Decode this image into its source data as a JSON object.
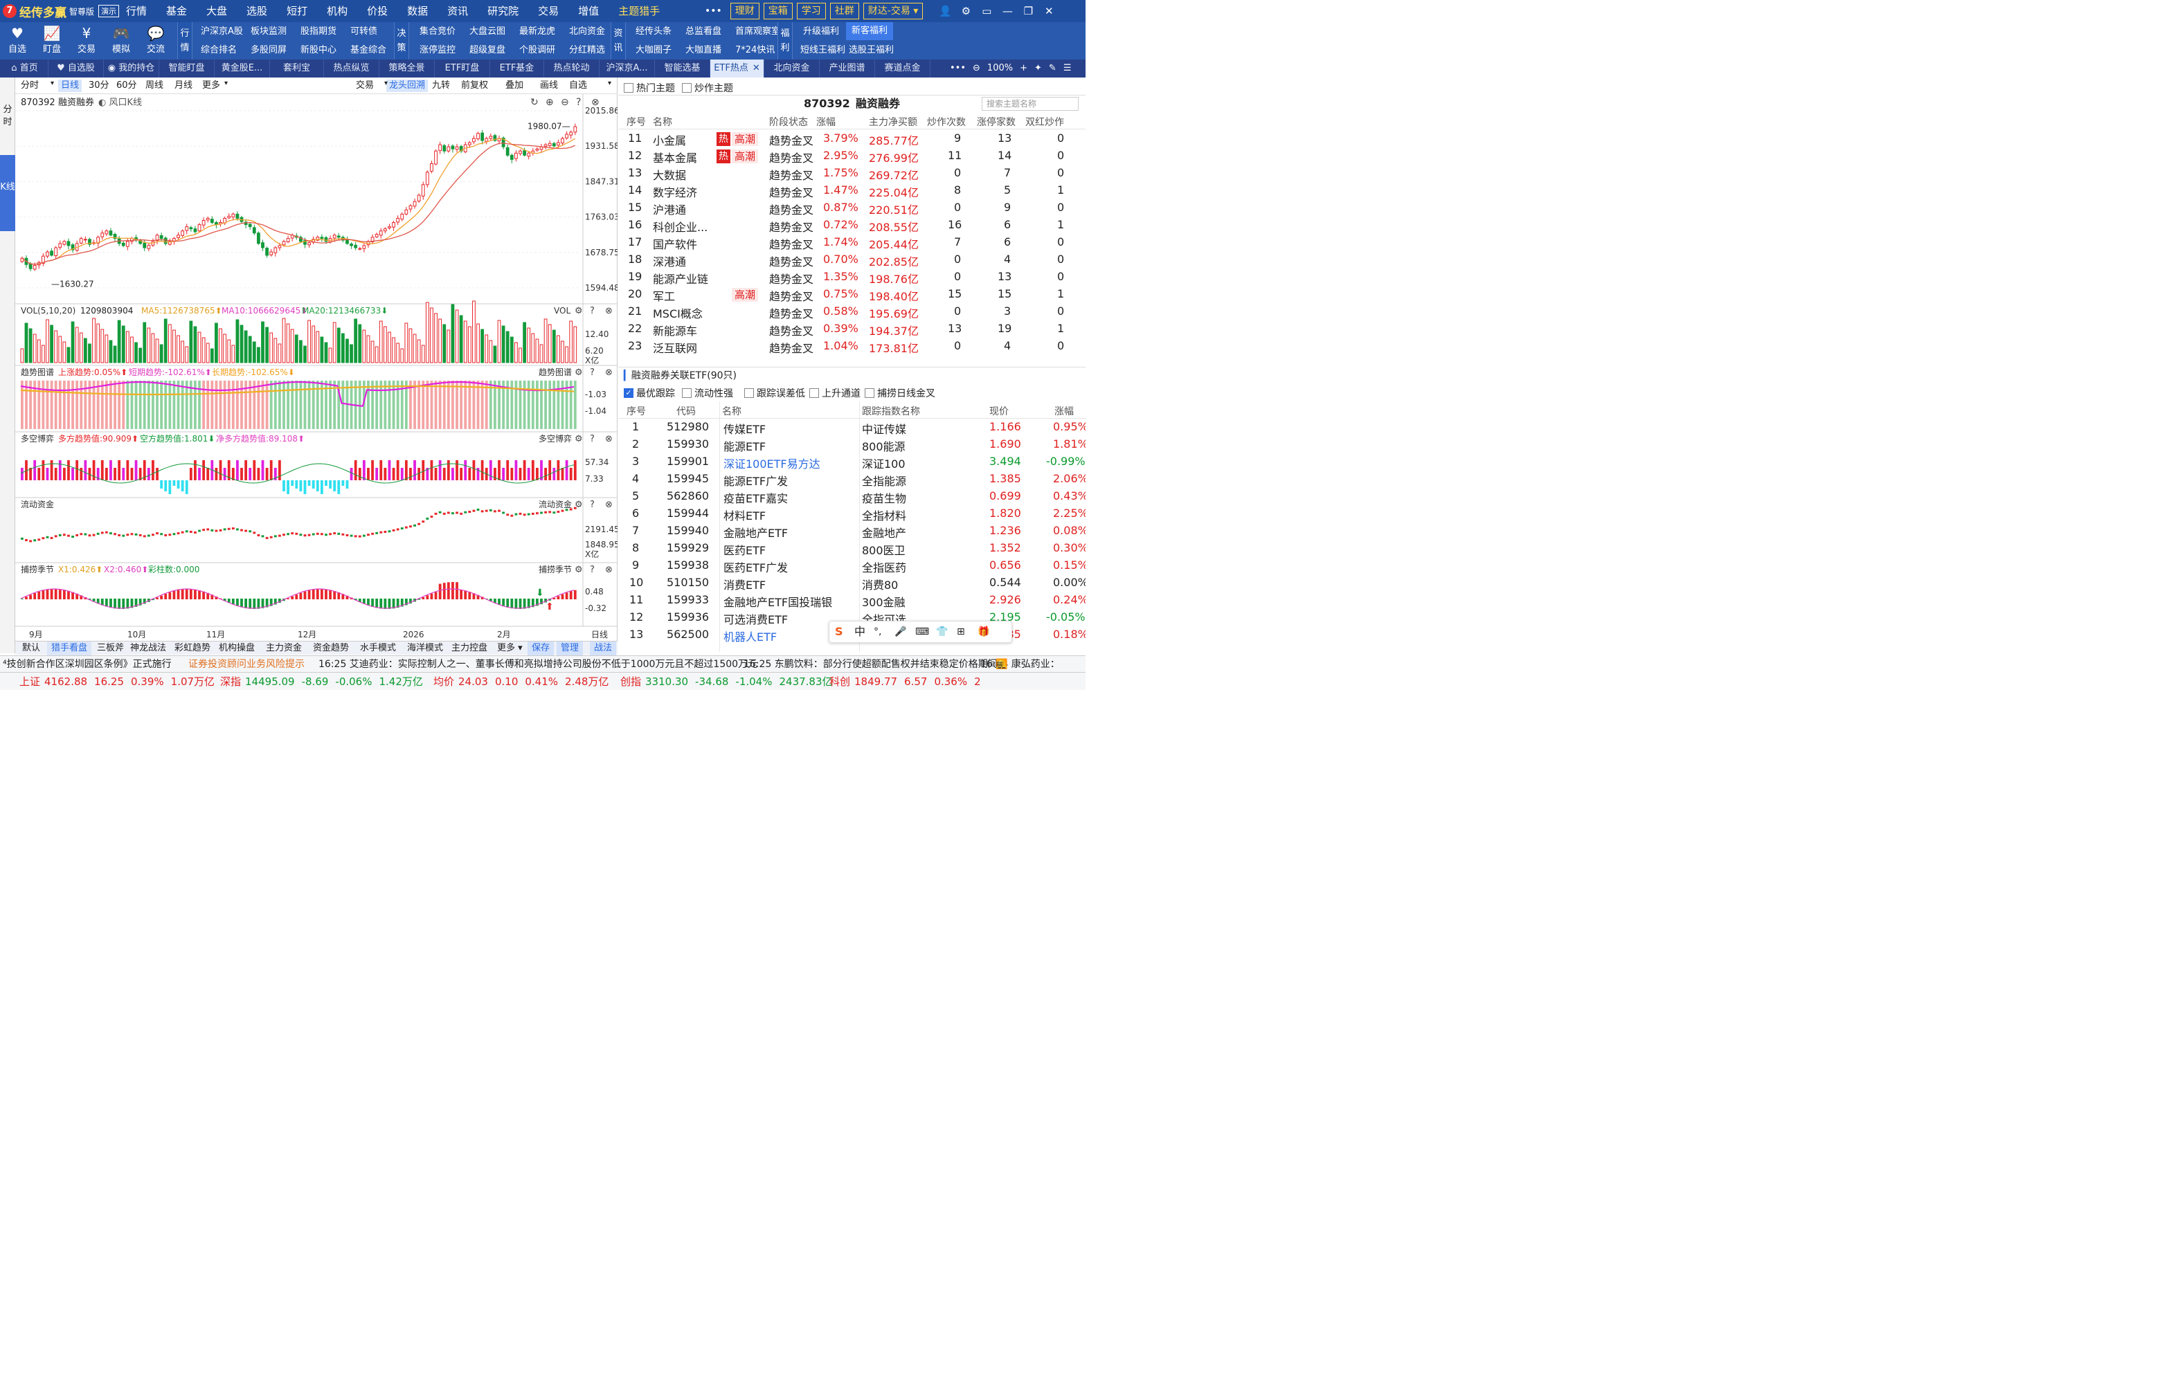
{
  "app": {
    "logo_glyph": "7",
    "name": "经传多赢",
    "edition": "智尊版",
    "demo": "演示"
  },
  "menu": [
    "行情",
    "基金",
    "大盘",
    "选股",
    "短打",
    "机构",
    "价投",
    "数据",
    "资讯",
    "研究院",
    "交易",
    "增值",
    "主题猎手"
  ],
  "topright": {
    "more": "•••",
    "buttons": [
      "理财",
      "宝箱",
      "学习",
      "社群",
      "财达-交易"
    ],
    "icons": [
      "user-icon",
      "gear-icon",
      "window-icon",
      "minimize-icon",
      "restore-icon",
      "close-icon"
    ]
  },
  "toolbar": {
    "icons": [
      {
        "glyph": "♥",
        "label": "自选"
      },
      {
        "glyph": "📈",
        "label": "盯盘"
      },
      {
        "glyph": "¥",
        "label": "交易"
      },
      {
        "glyph": "🎮",
        "label": "模拟"
      },
      {
        "glyph": "💬",
        "label": "交流"
      }
    ],
    "group_hq": "行情",
    "hq_links": [
      "沪深京A股",
      "板块监测",
      "股指期货",
      "可转债",
      "综合排名",
      "多股同屏",
      "新股中心",
      "基金综合"
    ],
    "group_jc": "决策",
    "jc_links": [
      "集合竞价",
      "大盘云图",
      "最新龙虎",
      "北向资金",
      "涨停监控",
      "超级复盘",
      "个股调研",
      "分红精选"
    ],
    "group_zx": "资讯",
    "zx_links": [
      "经传头条",
      "总监看盘",
      "首席观察室",
      "大咖圈子",
      "大咖直播",
      "7*24快讯"
    ],
    "group_fl": "福利",
    "fl_links": [
      "升级福利",
      "新客福利",
      "短线王福利",
      "选股王福利"
    ]
  },
  "tabs": [
    "首页",
    "自选股",
    "我的持仓",
    "智能盯盘",
    "黄金股E...",
    "套利宝",
    "热点纵览",
    "策略全景",
    "ETF盯盘",
    "ETF基金",
    "热点轮动",
    "沪深京A...",
    "智能选基",
    "ETF热点",
    "北向资金",
    "产业图谱",
    "赛道点金"
  ],
  "tab_right": {
    "zoom": "100%"
  },
  "side": {
    "fen": "分时",
    "k": "K线"
  },
  "chart_toolbar": {
    "periods": [
      "分时",
      "日线",
      "30分",
      "60分",
      "周线",
      "月线",
      "更多"
    ],
    "right": [
      "交易",
      "龙头回溯",
      "九转",
      "前复权",
      "叠加",
      "画线",
      "自选"
    ]
  },
  "chart_header": {
    "code": "870392",
    "name": "融资融券",
    "kline": "风口K线"
  },
  "chart_data": {
    "type": "candlestick",
    "title": "870392 融资融券",
    "y_ticks": [
      "2015.86",
      "1931.58",
      "1847.31",
      "1763.03",
      "1678.75",
      "1594.48"
    ],
    "ylim": [
      1594.48,
      2015.86
    ],
    "high_label": "1980.07",
    "low_label": "1630.27",
    "x_labels": [
      "9月",
      "10月",
      "11月",
      "12月",
      "2026",
      "2月",
      "日线"
    ],
    "closes": [
      1665,
      1650,
      1640,
      1648,
      1655,
      1670,
      1680,
      1672,
      1690,
      1700,
      1705,
      1695,
      1685,
      1700,
      1712,
      1710,
      1698,
      1702,
      1715,
      1725,
      1730,
      1720,
      1712,
      1700,
      1695,
      1705,
      1712,
      1708,
      1700,
      1690,
      1696,
      1705,
      1720,
      1712,
      1700,
      1705,
      1712,
      1720,
      1730,
      1740,
      1735,
      1728,
      1745,
      1755,
      1760,
      1750,
      1745,
      1750,
      1760,
      1765,
      1770,
      1760,
      1752,
      1745,
      1740,
      1725,
      1700,
      1690,
      1672,
      1680,
      1690,
      1695,
      1705,
      1712,
      1720,
      1715,
      1705,
      1698,
      1702,
      1710,
      1715,
      1712,
      1705,
      1712,
      1720,
      1715,
      1708,
      1700,
      1695,
      1690,
      1688,
      1695,
      1705,
      1715,
      1722,
      1730,
      1735,
      1740,
      1750,
      1760,
      1770,
      1780,
      1790,
      1800,
      1815,
      1840,
      1870,
      1890,
      1920,
      1935,
      1920,
      1930,
      1925,
      1930,
      1920,
      1935,
      1940,
      1950,
      1962,
      1945,
      1950,
      1955,
      1945,
      1950,
      1930,
      1910,
      1900,
      1915,
      1920,
      1910,
      1915,
      1920,
      1925,
      1930,
      1935,
      1938,
      1932,
      1940,
      1950,
      1960,
      1965,
      1978
    ],
    "vol_header": {
      "name": "VOL(5,10,20)",
      "value": "1209803904",
      "ma5": "MA5:1126738765",
      "ma10": "MA10:1066629645",
      "ma20": "MA20:1213466733"
    },
    "vol_ticks": [
      "12.40",
      "6.20",
      "X亿"
    ],
    "trend": {
      "name": "趋势图谱",
      "up": "上涨趋势:0.05%",
      "short": "短期趋势:-102.61%",
      "long": "长期趋势:-102.65%",
      "ticks": [
        "-1.03",
        "-1.04"
      ]
    },
    "ls": {
      "name": "多空博弈",
      "bull": "多方趋势值:90.909",
      "bear": "空方趋势值:1.801",
      "net": "净多方趋势值:89.108",
      "ticks": [
        "57.34",
        "7.33"
      ]
    },
    "flow": {
      "name": "流动资金",
      "ticks": [
        "2191.45",
        "1848.95",
        "X亿"
      ]
    },
    "season": {
      "name": "捕捞季节",
      "x1": "X1:0.426",
      "x2": "X2:0.460",
      "bar": "彩柱数:0.000",
      "ticks": [
        "0.48",
        "-0.32"
      ]
    }
  },
  "bottom_tabs": [
    "默认",
    "猎手看盘",
    "三板斧",
    "神龙战法",
    "彩虹趋势",
    "机构操盘",
    "主力资金",
    "资金趋势",
    "水手模式",
    "海洋模式",
    "主力控盘",
    "更多",
    "保存",
    "管理",
    "战法"
  ],
  "right": {
    "filters": [
      "热门主题",
      "炒作主题"
    ],
    "title_code": "870392",
    "title_name": "融资融券",
    "search_ph": "搜索主题名称",
    "headers": [
      "序号",
      "名称",
      "阶段状态",
      "涨幅",
      "主力净买额",
      "炒作次数",
      "涨停家数",
      "双红炒作"
    ],
    "rows": [
      {
        "n": "11",
        "name": "小金属",
        "hot": "热",
        "high": "高潮",
        "stage": "趋势金叉",
        "pct": "3.79%",
        "amt": "285.77亿",
        "times": "9",
        "limit": "13",
        "dbl": "0"
      },
      {
        "n": "12",
        "name": "基本金属",
        "hot": "热",
        "high": "高潮",
        "stage": "趋势金叉",
        "pct": "2.95%",
        "amt": "276.99亿",
        "times": "11",
        "limit": "14",
        "dbl": "0"
      },
      {
        "n": "13",
        "name": "大数据",
        "hot": "",
        "high": "",
        "stage": "趋势金叉",
        "pct": "1.75%",
        "amt": "269.72亿",
        "times": "0",
        "limit": "7",
        "dbl": "0"
      },
      {
        "n": "14",
        "name": "数字经济",
        "hot": "",
        "high": "",
        "stage": "趋势金叉",
        "pct": "1.47%",
        "amt": "225.04亿",
        "times": "8",
        "limit": "5",
        "dbl": "1"
      },
      {
        "n": "15",
        "name": "沪港通",
        "hot": "",
        "high": "",
        "stage": "趋势金叉",
        "pct": "0.87%",
        "amt": "220.51亿",
        "times": "0",
        "limit": "9",
        "dbl": "0"
      },
      {
        "n": "16",
        "name": "科创企业...",
        "hot": "",
        "high": "",
        "stage": "趋势金叉",
        "pct": "0.72%",
        "amt": "208.55亿",
        "times": "16",
        "limit": "6",
        "dbl": "1"
      },
      {
        "n": "17",
        "name": "国产软件",
        "hot": "",
        "high": "",
        "stage": "趋势金叉",
        "pct": "1.74%",
        "amt": "205.44亿",
        "times": "7",
        "limit": "6",
        "dbl": "0"
      },
      {
        "n": "18",
        "name": "深港通",
        "hot": "",
        "high": "",
        "stage": "趋势金叉",
        "pct": "0.70%",
        "amt": "202.85亿",
        "times": "0",
        "limit": "4",
        "dbl": "0"
      },
      {
        "n": "19",
        "name": "能源产业链",
        "hot": "",
        "high": "",
        "stage": "趋势金叉",
        "pct": "1.35%",
        "amt": "198.76亿",
        "times": "0",
        "limit": "13",
        "dbl": "0"
      },
      {
        "n": "20",
        "name": "军工",
        "hot": "",
        "high": "高潮",
        "stage": "趋势金叉",
        "pct": "0.75%",
        "amt": "198.40亿",
        "times": "15",
        "limit": "15",
        "dbl": "1"
      },
      {
        "n": "21",
        "name": "MSCI概念",
        "hot": "",
        "high": "",
        "stage": "趋势金叉",
        "pct": "0.58%",
        "amt": "195.69亿",
        "times": "0",
        "limit": "3",
        "dbl": "0"
      },
      {
        "n": "22",
        "name": "新能源车",
        "hot": "",
        "high": "",
        "stage": "趋势金叉",
        "pct": "0.39%",
        "amt": "194.37亿",
        "times": "13",
        "limit": "19",
        "dbl": "1"
      },
      {
        "n": "23",
        "name": "泛互联网",
        "hot": "",
        "high": "",
        "stage": "趋势金叉",
        "pct": "1.04%",
        "amt": "173.81亿",
        "times": "0",
        "limit": "4",
        "dbl": "0"
      }
    ],
    "etf_title": "融资融券关联ETF(90只)",
    "etf_opts": [
      {
        "label": "最优跟踪",
        "on": true
      },
      {
        "label": "流动性强",
        "on": false
      },
      {
        "label": "跟踪误差低",
        "on": false
      },
      {
        "label": "上升通道",
        "on": false
      },
      {
        "label": "捕捞日线金叉",
        "on": false
      }
    ],
    "etf_headers": [
      "序号",
      "代码",
      "名称",
      "跟踪指数名称",
      "现价",
      "涨幅"
    ],
    "etf_rows": [
      {
        "n": "1",
        "code": "512980",
        "name": "传媒ETF",
        "idx": "中证传媒",
        "price": "1.166",
        "pct": "0.95%",
        "pc": "red"
      },
      {
        "n": "2",
        "code": "159930",
        "name": "能源ETF",
        "idx": "800能源",
        "price": "1.690",
        "pct": "1.81%",
        "pc": "red"
      },
      {
        "n": "3",
        "code": "159901",
        "name": "深证100ETF易方达",
        "idx": "深证100",
        "price": "3.494",
        "pct": "-0.99%",
        "pc": "green",
        "link": true
      },
      {
        "n": "4",
        "code": "159945",
        "name": "能源ETF广发",
        "idx": "全指能源",
        "price": "1.385",
        "pct": "2.06%",
        "pc": "red"
      },
      {
        "n": "5",
        "code": "562860",
        "name": "疫苗ETF嘉实",
        "idx": "疫苗生物",
        "price": "0.699",
        "pct": "0.43%",
        "pc": "red"
      },
      {
        "n": "6",
        "code": "159944",
        "name": "材料ETF",
        "idx": "全指材料",
        "price": "1.820",
        "pct": "2.25%",
        "pc": "red"
      },
      {
        "n": "7",
        "code": "159940",
        "name": "金融地产ETF",
        "idx": "金融地产",
        "price": "1.236",
        "pct": "0.08%",
        "pc": "red"
      },
      {
        "n": "8",
        "code": "159929",
        "name": "医药ETF",
        "idx": "800医卫",
        "price": "1.352",
        "pct": "0.30%",
        "pc": "red"
      },
      {
        "n": "9",
        "code": "159938",
        "name": "医药ETF广发",
        "idx": "全指医药",
        "price": "0.656",
        "pct": "0.15%",
        "pc": "red"
      },
      {
        "n": "10",
        "code": "510150",
        "name": "消费ETF",
        "idx": "消费80",
        "price": "0.544",
        "pct": "0.00%",
        "pc": "black"
      },
      {
        "n": "11",
        "code": "159933",
        "name": "金融地产ETF国投瑞银",
        "idx": "300金融",
        "price": "2.926",
        "pct": "0.24%",
        "pc": "red"
      },
      {
        "n": "12",
        "code": "159936",
        "name": "可选消费ETF",
        "idx": "全指可选",
        "price": "2.195",
        "pct": "-0.05%",
        "pc": "green"
      },
      {
        "n": "13",
        "code": "562500",
        "name": "机器人ETF",
        "idx": "",
        "price": "0.985",
        "pct": "0.18%",
        "pc": "red",
        "link": true
      }
    ]
  },
  "ticker": [
    "⁴技创新合作区深圳园区条例》正式施行",
    "证券投资顾问业务风险提示",
    "16:25 艾迪药业：实际控制人之一、董事长傅和亮拟增持公司股份不低于1000万元且不超过1500万元",
    "16:25 东鹏饮料：部分行使超额配售权并结束稳定价格期间",
    "16:24 康弘药业："
  ],
  "status": [
    {
      "name": "上证",
      "v": "4162.88",
      "c": "16.25",
      "p": "0.39%",
      "a": "1.07万亿",
      "col": "red"
    },
    {
      "name": "深指",
      "v": "14495.09",
      "c": "-8.69",
      "p": "-0.06%",
      "a": "1.42万亿",
      "col": "green"
    },
    {
      "name": "均价",
      "v": "24.03",
      "c": "0.10",
      "p": "0.41%",
      "a": "2.48万亿",
      "col": "red"
    },
    {
      "name": "创指",
      "v": "3310.30",
      "c": "-34.68",
      "p": "-1.04%",
      "a": "2437.83亿",
      "col": "green"
    },
    {
      "name": "科创",
      "v": "1849.77",
      "c": "6.57",
      "p": "0.36%",
      "a": "2",
      "col": "red"
    }
  ],
  "ime": {
    "main": "中",
    "items": [
      "°,",
      "🎤",
      "⌨",
      "👕",
      "⊞",
      "🎁"
    ]
  }
}
